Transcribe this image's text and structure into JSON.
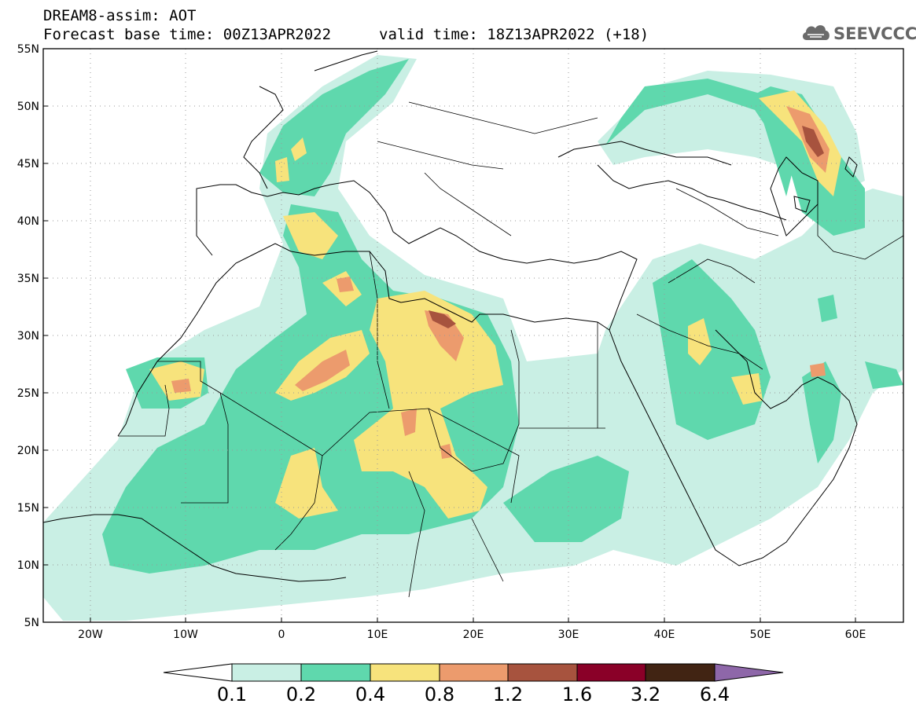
{
  "header": {
    "title_line1": "DREAM8-assim: AOT",
    "title_line2": "Forecast base time: 00Z13APR2022",
    "valid_time": "valid time: 18Z13APR2022 (+18)"
  },
  "logo": {
    "icon": "cloud-logo-icon",
    "text": "SEEVCCC"
  },
  "map": {
    "lat_labels": [
      "55N",
      "50N",
      "45N",
      "40N",
      "35N",
      "30N",
      "25N",
      "20N",
      "15N",
      "10N",
      "5N"
    ],
    "lon_labels": [
      "20W",
      "10W",
      "0",
      "10E",
      "20E",
      "30E",
      "40E",
      "50E",
      "60E"
    ],
    "lat_range": [
      5,
      55
    ],
    "lon_range": [
      -25,
      65
    ],
    "gridlines": "dotted"
  },
  "colorbar": {
    "labels": [
      "0.1",
      "0.2",
      "0.4",
      "0.8",
      "1.2",
      "1.6",
      "3.2",
      "6.4"
    ],
    "colors": [
      "#ffffff",
      "#c9efe4",
      "#5fd8ad",
      "#f7e37c",
      "#ec9b6d",
      "#a7533e",
      "#8a0028",
      "#412413",
      "#8e67a9"
    ]
  }
}
